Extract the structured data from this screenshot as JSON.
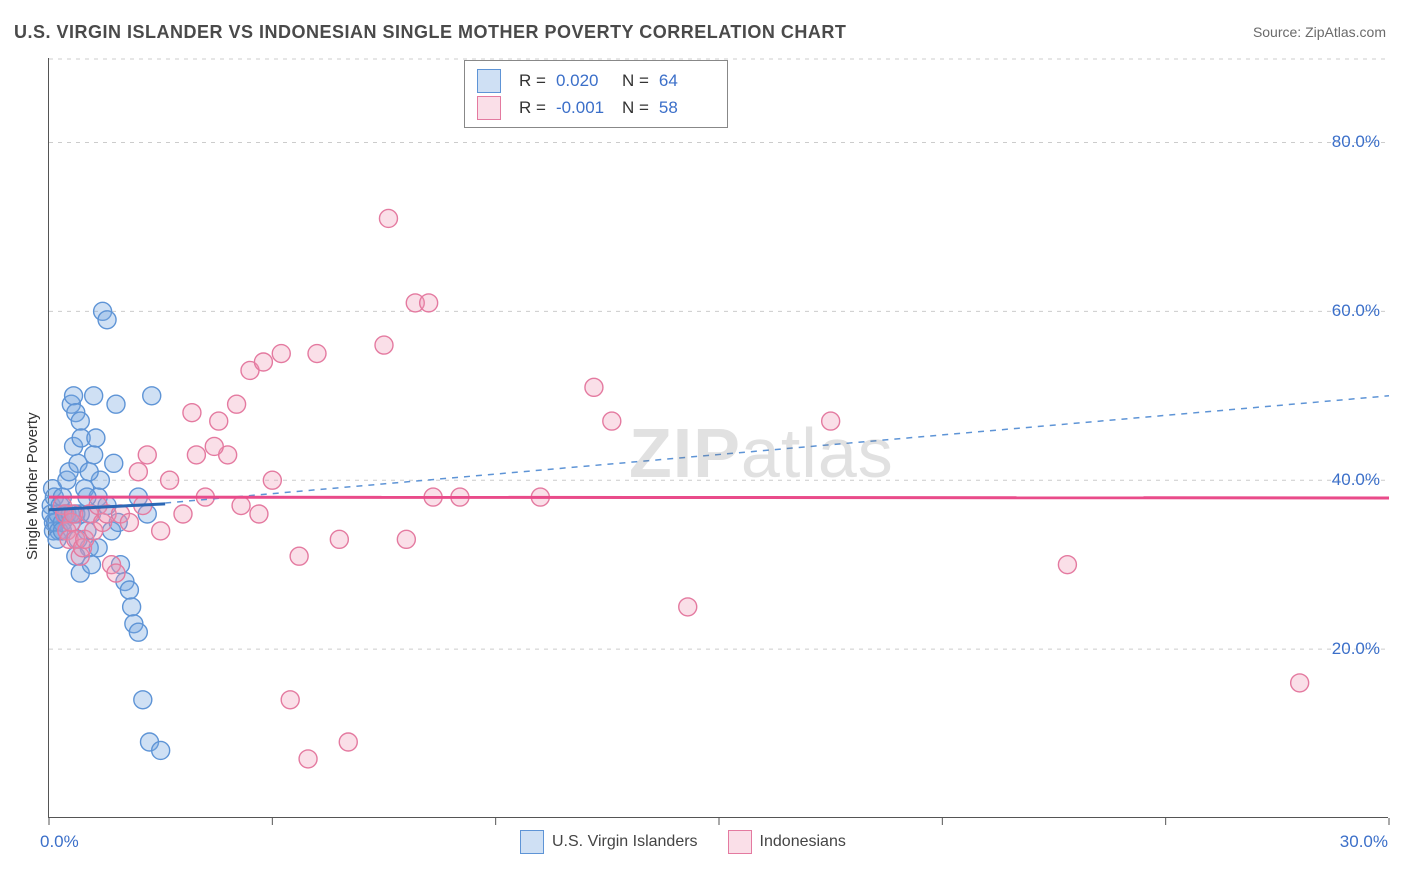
{
  "title": "U.S. VIRGIN ISLANDER VS INDONESIAN SINGLE MOTHER POVERTY CORRELATION CHART",
  "source_label": "Source: ZipAtlas.com",
  "y_axis_label": "Single Mother Poverty",
  "watermark_zip": "ZIP",
  "watermark_atlas": "atlas",
  "chart": {
    "type": "scatter",
    "background_color": "#ffffff",
    "grid_color": "#cccccc",
    "grid_dash": "4,5",
    "axis_color": "#555555",
    "xlim": [
      0,
      30
    ],
    "ylim": [
      0,
      90
    ],
    "x_ticks": [
      0,
      5,
      10,
      15,
      20,
      25,
      30
    ],
    "x_tick_labels": {
      "0": "0.0%",
      "30": "30.0%"
    },
    "y_ticks": [
      20,
      40,
      60,
      80
    ],
    "y_tick_labels": {
      "20": "20.0%",
      "40": "40.0%",
      "60": "60.0%",
      "80": "80.0%"
    },
    "tick_label_color": "#3b6fc9",
    "tick_label_fontsize": 17,
    "marker_radius": 9,
    "marker_stroke_width": 1.4,
    "series": [
      {
        "key": "usvi",
        "label": "U.S. Virgin Islanders",
        "fill": "rgba(118,167,224,0.35)",
        "stroke": "#5e94d6",
        "points": [
          [
            0.05,
            37
          ],
          [
            0.05,
            36
          ],
          [
            0.1,
            35
          ],
          [
            0.08,
            39
          ],
          [
            0.12,
            38
          ],
          [
            0.1,
            34
          ],
          [
            0.15,
            35
          ],
          [
            0.2,
            36
          ],
          [
            0.22,
            34
          ],
          [
            0.18,
            33
          ],
          [
            0.25,
            37
          ],
          [
            0.3,
            38
          ],
          [
            0.3,
            35
          ],
          [
            0.35,
            36
          ],
          [
            0.4,
            40
          ],
          [
            0.4,
            36
          ],
          [
            0.45,
            41
          ],
          [
            0.5,
            49
          ],
          [
            0.55,
            50
          ],
          [
            0.55,
            44
          ],
          [
            0.6,
            48
          ],
          [
            0.6,
            36
          ],
          [
            0.65,
            42
          ],
          [
            0.7,
            47
          ],
          [
            0.72,
            45
          ],
          [
            0.8,
            39
          ],
          [
            0.85,
            34
          ],
          [
            0.9,
            32
          ],
          [
            0.95,
            36
          ],
          [
            1.0,
            50
          ],
          [
            1.0,
            43
          ],
          [
            1.05,
            45
          ],
          [
            1.1,
            38
          ],
          [
            1.1,
            32
          ],
          [
            1.15,
            40
          ],
          [
            1.2,
            60
          ],
          [
            1.3,
            59
          ],
          [
            1.3,
            37
          ],
          [
            1.4,
            34
          ],
          [
            1.45,
            42
          ],
          [
            1.5,
            49
          ],
          [
            1.55,
            35
          ],
          [
            1.6,
            30
          ],
          [
            1.7,
            28
          ],
          [
            1.8,
            27
          ],
          [
            1.85,
            25
          ],
          [
            1.9,
            23
          ],
          [
            2.0,
            22
          ],
          [
            2.0,
            38
          ],
          [
            2.1,
            14
          ],
          [
            2.2,
            36
          ],
          [
            2.25,
            9
          ],
          [
            2.5,
            8
          ],
          [
            0.6,
            31
          ],
          [
            0.65,
            33
          ],
          [
            0.7,
            29
          ],
          [
            0.48,
            36
          ],
          [
            0.9,
            41
          ],
          [
            0.85,
            38
          ],
          [
            0.7,
            36
          ],
          [
            0.3,
            34
          ],
          [
            0.5,
            35
          ],
          [
            2.3,
            50
          ],
          [
            0.95,
            30
          ]
        ],
        "regression": {
          "y_start": 36.5,
          "y_end": 37.2,
          "x_extent": 2.6,
          "stroke": "#2b67b5",
          "width": 3
        },
        "trend_dashed": {
          "y_start": 37.3,
          "y_end": 50.0,
          "x_start": 2.6,
          "x_end": 30,
          "stroke": "#5e94d6",
          "dash": "6,6",
          "width": 1.5
        }
      },
      {
        "key": "indo",
        "label": "Indonesians",
        "fill": "rgba(240,150,180,0.30)",
        "stroke": "#e47aa0",
        "points": [
          [
            0.3,
            37
          ],
          [
            0.35,
            36
          ],
          [
            0.4,
            34
          ],
          [
            0.45,
            33
          ],
          [
            0.5,
            35
          ],
          [
            0.55,
            36
          ],
          [
            0.6,
            33
          ],
          [
            0.7,
            31
          ],
          [
            0.75,
            32
          ],
          [
            0.8,
            33
          ],
          [
            0.9,
            36
          ],
          [
            1.0,
            34
          ],
          [
            1.1,
            37
          ],
          [
            1.2,
            35
          ],
          [
            1.3,
            36
          ],
          [
            1.4,
            30
          ],
          [
            1.5,
            29
          ],
          [
            1.6,
            36
          ],
          [
            1.8,
            35
          ],
          [
            2.0,
            41
          ],
          [
            2.1,
            37
          ],
          [
            2.2,
            43
          ],
          [
            2.5,
            34
          ],
          [
            2.7,
            40
          ],
          [
            3.0,
            36
          ],
          [
            3.2,
            48
          ],
          [
            3.3,
            43
          ],
          [
            3.5,
            38
          ],
          [
            3.8,
            47
          ],
          [
            4.0,
            43
          ],
          [
            4.2,
            49
          ],
          [
            4.3,
            37
          ],
          [
            4.5,
            53
          ],
          [
            4.7,
            36
          ],
          [
            5.0,
            40
          ],
          [
            5.2,
            55
          ],
          [
            5.6,
            31
          ],
          [
            5.8,
            7
          ],
          [
            6.0,
            55
          ],
          [
            6.5,
            33
          ],
          [
            6.7,
            9
          ],
          [
            7.5,
            56
          ],
          [
            7.6,
            71
          ],
          [
            8.0,
            33
          ],
          [
            8.2,
            61
          ],
          [
            8.5,
            61
          ],
          [
            8.6,
            38
          ],
          [
            9.2,
            38
          ],
          [
            11.0,
            38
          ],
          [
            12.2,
            51
          ],
          [
            12.6,
            47
          ],
          [
            14.3,
            25
          ],
          [
            17.5,
            47
          ],
          [
            22.8,
            30
          ],
          [
            28.0,
            16
          ],
          [
            5.4,
            14
          ],
          [
            4.8,
            54
          ],
          [
            3.7,
            44
          ]
        ],
        "regression": {
          "y_start": 38.0,
          "y_end": 37.9,
          "x_extent": 30,
          "stroke": "#e94b8a",
          "width": 3
        }
      }
    ],
    "stats_box": {
      "rows": [
        {
          "swatch_fill": "rgba(118,167,224,0.35)",
          "swatch_stroke": "#5e94d6",
          "R": "0.020",
          "N": "64"
        },
        {
          "swatch_fill": "rgba(240,150,180,0.30)",
          "swatch_stroke": "#e47aa0",
          "R": "-0.001",
          "N": "58"
        }
      ],
      "R_label": "R  =",
      "N_label": "N  ="
    },
    "bottom_legend": [
      {
        "swatch_fill": "rgba(118,167,224,0.35)",
        "swatch_stroke": "#5e94d6",
        "label": "U.S. Virgin Islanders"
      },
      {
        "swatch_fill": "rgba(240,150,180,0.30)",
        "swatch_stroke": "#e47aa0",
        "label": "Indonesians"
      }
    ]
  }
}
